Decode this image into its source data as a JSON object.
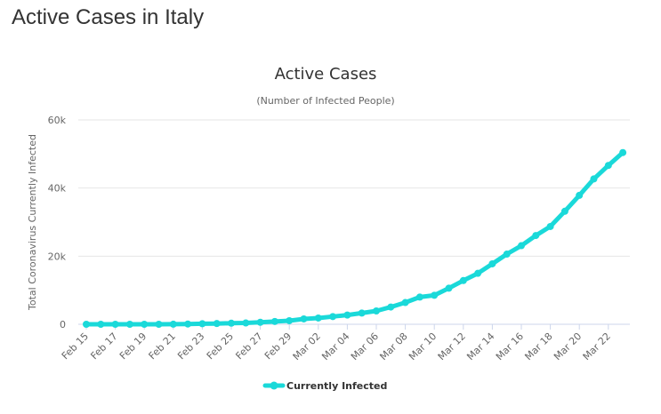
{
  "page": {
    "title": "Active Cases in Italy"
  },
  "chart_data": {
    "type": "line",
    "title": "Active Cases",
    "subtitle": "(Number of Infected People)",
    "xlabel": "",
    "ylabel": "Total Coronavirus Currently Infected",
    "ylim": [
      0,
      60000
    ],
    "yticks": [
      0,
      20000,
      40000,
      60000
    ],
    "ytick_labels": [
      "0",
      "20k",
      "40k",
      "60k"
    ],
    "grid": true,
    "legend_position": "bottom-center",
    "x": [
      "Feb 15",
      "Feb 16",
      "Feb 17",
      "Feb 18",
      "Feb 19",
      "Feb 20",
      "Feb 21",
      "Feb 22",
      "Feb 23",
      "Feb 24",
      "Feb 25",
      "Feb 26",
      "Feb 27",
      "Feb 28",
      "Feb 29",
      "Mar 01",
      "Mar 02",
      "Mar 03",
      "Mar 04",
      "Mar 05",
      "Mar 06",
      "Mar 07",
      "Mar 08",
      "Mar 09",
      "Mar 10",
      "Mar 11",
      "Mar 12",
      "Mar 13",
      "Mar 14",
      "Mar 15",
      "Mar 16",
      "Mar 17",
      "Mar 18",
      "Mar 19",
      "Mar 20",
      "Mar 21",
      "Mar 22",
      "Mar 23"
    ],
    "xtick_labels": [
      "Feb 15",
      "Feb 17",
      "Feb 19",
      "Feb 21",
      "Feb 23",
      "Feb 25",
      "Feb 27",
      "Feb 29",
      "Mar 02",
      "Mar 04",
      "Mar 06",
      "Mar 08",
      "Mar 10",
      "Mar 12",
      "Mar 14",
      "Mar 16",
      "Mar 18",
      "Mar 20",
      "Mar 22"
    ],
    "series": [
      {
        "name": "Currently Infected",
        "color": "#1ad9d9",
        "values": [
          3,
          3,
          3,
          3,
          3,
          3,
          20,
          79,
          150,
          221,
          311,
          385,
          588,
          821,
          1049,
          1577,
          1835,
          2263,
          2706,
          3296,
          3916,
          5061,
          6387,
          7985,
          8514,
          10590,
          12839,
          14955,
          17750,
          20603,
          23073,
          26062,
          28710,
          33190,
          37860,
          42681,
          46638,
          50418
        ]
      }
    ]
  }
}
